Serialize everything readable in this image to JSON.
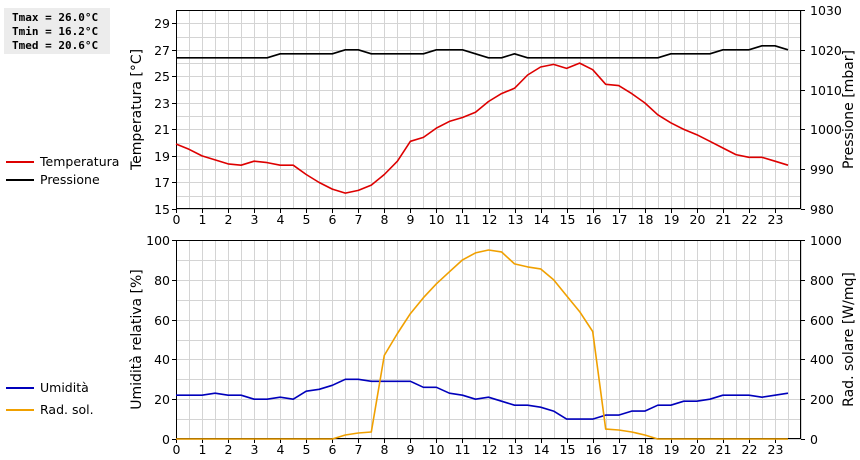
{
  "stats": {
    "tmax": "Tmax = 26.0°C",
    "tmin": "Tmin = 16.2°C",
    "tmed": "Tmed = 20.6°C"
  },
  "chart_data": [
    {
      "type": "line",
      "title": "",
      "xlabel": "",
      "ylabel": "Temperatura [°C]",
      "ylabel_right": "Pressione [mbar]",
      "xlim": [
        0,
        24
      ],
      "ylim": [
        15,
        30
      ],
      "ylim_right": [
        980,
        1030
      ],
      "x_ticks": [
        0,
        1,
        2,
        3,
        4,
        5,
        6,
        7,
        8,
        9,
        10,
        11,
        12,
        13,
        14,
        15,
        16,
        17,
        18,
        19,
        20,
        21,
        22,
        23
      ],
      "y_ticks": [
        15,
        17,
        19,
        21,
        23,
        25,
        27,
        29
      ],
      "y_ticks_right": [
        980,
        990,
        1000,
        1010,
        1020,
        1030
      ],
      "grid": true,
      "legend_position": "left",
      "series": [
        {
          "name": "Temperatura",
          "color": "#dd0000",
          "axis": "left",
          "x": [
            0,
            0.5,
            1,
            1.5,
            2,
            2.5,
            3,
            3.5,
            4,
            4.5,
            5,
            5.5,
            6,
            6.5,
            7,
            7.5,
            8,
            8.5,
            9,
            9.5,
            10,
            10.5,
            11,
            11.5,
            12,
            12.5,
            13,
            13.5,
            14,
            14.5,
            15,
            15.5,
            16,
            16.5,
            17,
            17.5,
            18,
            18.5,
            19,
            19.5,
            20,
            20.5,
            21,
            21.5,
            22,
            22.5,
            23,
            23.5
          ],
          "values": [
            19.9,
            19.5,
            19.0,
            18.7,
            18.4,
            18.3,
            18.6,
            18.5,
            18.3,
            18.3,
            17.6,
            17.0,
            16.5,
            16.2,
            16.4,
            16.8,
            17.6,
            18.6,
            20.1,
            20.4,
            21.1,
            21.6,
            21.9,
            22.3,
            23.1,
            23.7,
            24.1,
            25.1,
            25.7,
            25.9,
            25.6,
            26.0,
            25.5,
            24.4,
            24.3,
            23.7,
            23.0,
            22.1,
            21.5,
            21.0,
            20.6,
            20.1,
            19.6,
            19.1,
            18.9,
            18.9,
            18.6,
            18.3
          ]
        },
        {
          "name": "Pressione",
          "color": "#000000",
          "axis": "right",
          "x": [
            0,
            0.5,
            1,
            1.5,
            2,
            2.5,
            3,
            3.5,
            4,
            4.5,
            5,
            5.5,
            6,
            6.5,
            7,
            7.5,
            8,
            8.5,
            9,
            9.5,
            10,
            10.5,
            11,
            11.5,
            12,
            12.5,
            13,
            13.5,
            14,
            14.5,
            15,
            15.5,
            16,
            16.5,
            17,
            17.5,
            18,
            18.5,
            19,
            19.5,
            20,
            20.5,
            21,
            21.5,
            22,
            22.5,
            23,
            23.5
          ],
          "values": [
            1018,
            1018,
            1018,
            1018,
            1018,
            1018,
            1018,
            1018,
            1019,
            1019,
            1019,
            1019,
            1019,
            1020,
            1020,
            1019,
            1019,
            1019,
            1019,
            1019,
            1020,
            1020,
            1020,
            1019,
            1018,
            1018,
            1019,
            1018,
            1018,
            1018,
            1018,
            1018,
            1018,
            1018,
            1018,
            1018,
            1018,
            1018,
            1019,
            1019,
            1019,
            1019,
            1020,
            1020,
            1020,
            1021,
            1021,
            1020
          ]
        }
      ]
    },
    {
      "type": "line",
      "title": "",
      "xlabel": "",
      "ylabel": "Umidità relativa [%]",
      "ylabel_right": "Rad. solare [W/mq]",
      "xlim": [
        0,
        24
      ],
      "ylim": [
        0,
        100
      ],
      "ylim_right": [
        0,
        1000
      ],
      "x_ticks": [
        0,
        1,
        2,
        3,
        4,
        5,
        6,
        7,
        8,
        9,
        10,
        11,
        12,
        13,
        14,
        15,
        16,
        17,
        18,
        19,
        20,
        21,
        22,
        23
      ],
      "y_ticks": [
        0,
        20,
        40,
        60,
        80,
        100
      ],
      "y_ticks_right": [
        0,
        200,
        400,
        600,
        800,
        1000
      ],
      "grid": true,
      "legend_position": "left",
      "series": [
        {
          "name": "Umidità",
          "color": "#0000bb",
          "axis": "left",
          "x": [
            0,
            0.5,
            1,
            1.5,
            2,
            2.5,
            3,
            3.5,
            4,
            4.5,
            5,
            5.5,
            6,
            6.5,
            7,
            7.5,
            8,
            8.5,
            9,
            9.5,
            10,
            10.5,
            11,
            11.5,
            12,
            12.5,
            13,
            13.5,
            14,
            14.5,
            15,
            15.5,
            16,
            16.5,
            17,
            17.5,
            18,
            18.5,
            19,
            19.5,
            20,
            20.5,
            21,
            21.5,
            22,
            22.5,
            23,
            23.5
          ],
          "values": [
            22,
            22,
            22,
            23,
            22,
            22,
            20,
            20,
            21,
            20,
            24,
            25,
            27,
            30,
            30,
            29,
            29,
            29,
            29,
            26,
            26,
            23,
            22,
            20,
            21,
            19,
            17,
            17,
            16,
            14,
            10,
            10,
            10,
            12,
            12,
            14,
            14,
            17,
            17,
            19,
            19,
            20,
            22,
            22,
            22,
            21,
            22,
            23
          ]
        },
        {
          "name": "Rad. sol.",
          "color": "#f0a000",
          "axis": "right",
          "x": [
            0,
            0.5,
            1,
            1.5,
            2,
            2.5,
            3,
            3.5,
            4,
            4.5,
            5,
            5.5,
            6,
            6.5,
            7,
            7.5,
            8,
            8.5,
            9,
            9.5,
            10,
            10.5,
            11,
            11.5,
            12,
            12.5,
            13,
            13.5,
            14,
            14.5,
            15,
            15.5,
            16,
            16.5,
            17,
            17.5,
            18,
            18.5,
            19,
            19.5,
            20,
            20.5,
            21,
            21.5,
            22,
            22.5,
            23,
            23.5
          ],
          "values": [
            0,
            0,
            0,
            0,
            0,
            0,
            0,
            0,
            0,
            0,
            0,
            0,
            0,
            20,
            30,
            35,
            420,
            530,
            630,
            710,
            780,
            840,
            900,
            935,
            950,
            940,
            880,
            865,
            855,
            800,
            720,
            640,
            540,
            50,
            45,
            35,
            20,
            0,
            0,
            0,
            0,
            0,
            0,
            0,
            0,
            0,
            0,
            0
          ]
        }
      ]
    }
  ]
}
